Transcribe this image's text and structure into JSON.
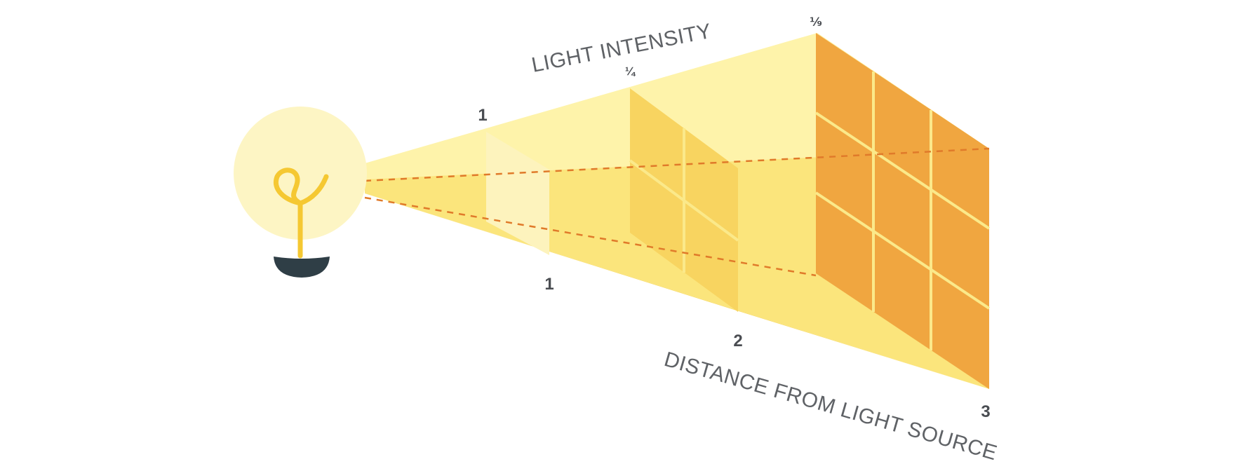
{
  "labels": {
    "light_intensity": "LIGHT INTENSITY",
    "distance": "DISTANCE FROM LIGHT SOURCE"
  },
  "intensity_marks": [
    "1",
    "¼",
    "⅑"
  ],
  "distance_marks": [
    "1",
    "2",
    "3"
  ],
  "colors": {
    "beam_light": "#fdf0a0",
    "beam_mid": "#fbe57c",
    "beam_dark": "#f6d964",
    "panel_1": "#fdf3bd",
    "panel_2": "#f8d460",
    "panel_3": "#f0a640",
    "grid_line": "#fbe98a",
    "dashed_line": "#e07a2a",
    "bulb_glow": "#fdf5c4",
    "filament": "#f5c832",
    "bulb_base": "#2f3e46"
  },
  "icons": {
    "light_source": "light-bulb-icon"
  }
}
